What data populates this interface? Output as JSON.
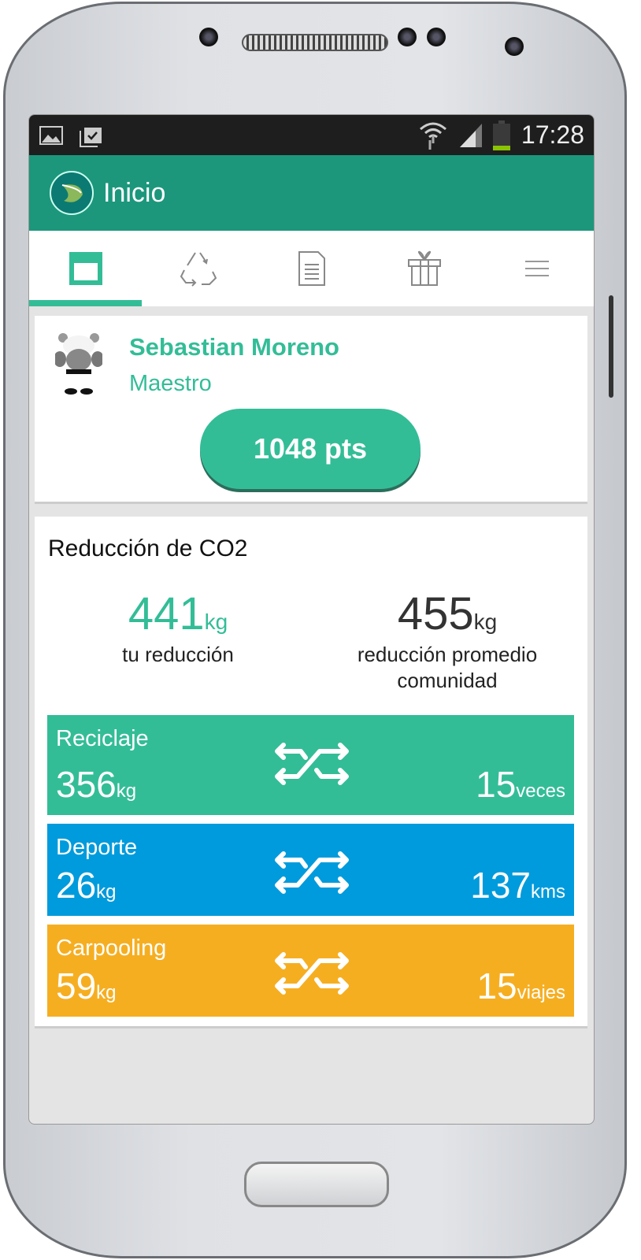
{
  "status_bar": {
    "time": "17:28"
  },
  "app_bar": {
    "title": "Inicio"
  },
  "tabs": [
    {
      "icon": "home-card-icon",
      "active": true
    },
    {
      "icon": "recycle-icon"
    },
    {
      "icon": "document-icon"
    },
    {
      "icon": "gift-icon"
    },
    {
      "icon": "menu-icon"
    }
  ],
  "profile": {
    "name": "Sebastian Moreno",
    "rank": "Maestro",
    "points": "1048 pts"
  },
  "co2": {
    "title": "Reducción de CO2",
    "yours": {
      "value": "441",
      "unit": "kg",
      "label": "tu reducción"
    },
    "community": {
      "value": "455",
      "unit": "kg",
      "label": "reducción promedio comunidad"
    },
    "categories": [
      {
        "name": "Reciclaje",
        "value": "356",
        "unit": "kg",
        "count": "15",
        "count_unit": "veces",
        "color": "#33bd97"
      },
      {
        "name": "Deporte",
        "value": "26",
        "unit": "kg",
        "count": "137",
        "count_unit": "kms",
        "color": "#009bdc"
      },
      {
        "name": "Carpooling",
        "value": "59",
        "unit": "kg",
        "count": "15",
        "count_unit": "viajes",
        "color": "#f6ae21"
      }
    ]
  },
  "colors": {
    "accent": "#33bd97",
    "app_bar": "#1c977c"
  }
}
